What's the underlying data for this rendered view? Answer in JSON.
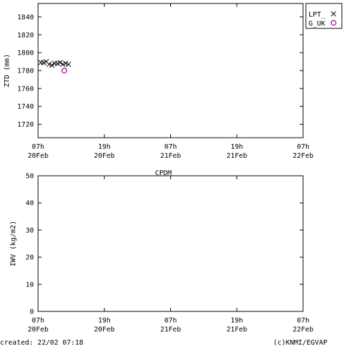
{
  "footer": {
    "created": "created: 22/02 07:18",
    "credit": "(c)KNMI/EGVAP"
  },
  "colors": {
    "series_lpt": "#000000",
    "series_guk": "#a000a0"
  },
  "chart_data": [
    {
      "type": "scatter",
      "title": "",
      "xlabel": "",
      "ylabel": "ZTD (mm)",
      "ylim": [
        1705,
        1855
      ],
      "xlim_hours": [
        0,
        48
      ],
      "x_ticks": [
        {
          "hour": 0,
          "line1": "07h",
          "line2": "20Feb"
        },
        {
          "hour": 12,
          "line1": "19h",
          "line2": "20Feb"
        },
        {
          "hour": 24,
          "line1": "07h",
          "line2": "21Feb"
        },
        {
          "hour": 36,
          "line1": "19h",
          "line2": "21Feb"
        },
        {
          "hour": 48,
          "line1": "07h",
          "line2": "22Feb"
        }
      ],
      "y_ticks": [
        1720,
        1740,
        1760,
        1780,
        1800,
        1820,
        1840
      ],
      "legend_position": "top-right",
      "series": [
        {
          "name": "LPT_",
          "marker": "x",
          "points": [
            {
              "hour": 0.5,
              "y": 1789
            },
            {
              "hour": 1.0,
              "y": 1789
            },
            {
              "hour": 1.5,
              "y": 1790
            },
            {
              "hour": 2.0,
              "y": 1787
            },
            {
              "hour": 2.5,
              "y": 1786
            },
            {
              "hour": 3.0,
              "y": 1788
            },
            {
              "hour": 3.5,
              "y": 1788
            },
            {
              "hour": 4.0,
              "y": 1789
            },
            {
              "hour": 4.5,
              "y": 1787
            },
            {
              "hour": 5.0,
              "y": 1788
            },
            {
              "hour": 5.5,
              "y": 1787
            }
          ]
        },
        {
          "name": "G_UK",
          "marker": "circle",
          "points": [
            {
              "hour": 4.75,
              "y": 1780
            }
          ]
        }
      ]
    },
    {
      "type": "scatter",
      "title": "CPDM",
      "xlabel": "",
      "ylabel": "IWV (kg/m2)",
      "ylim": [
        0,
        50
      ],
      "xlim_hours": [
        0,
        48
      ],
      "x_ticks": [
        {
          "hour": 0,
          "line1": "07h",
          "line2": "20Feb"
        },
        {
          "hour": 12,
          "line1": "19h",
          "line2": "20Feb"
        },
        {
          "hour": 24,
          "line1": "07h",
          "line2": "21Feb"
        },
        {
          "hour": 36,
          "line1": "19h",
          "line2": "21Feb"
        },
        {
          "hour": 48,
          "line1": "07h",
          "line2": "22Feb"
        }
      ],
      "y_ticks": [
        0,
        10,
        20,
        30,
        40,
        50
      ],
      "series": []
    }
  ]
}
